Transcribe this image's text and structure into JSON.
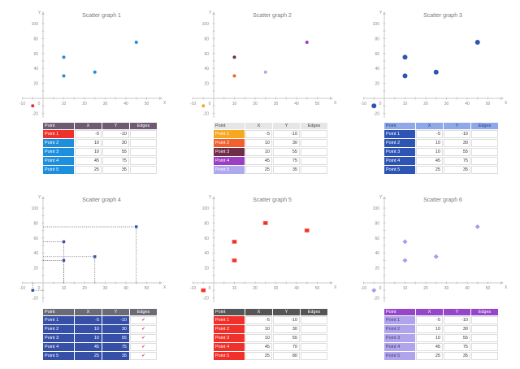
{
  "chart_data": [
    {
      "type": "scatter",
      "title": "Scatter graph 1",
      "xlabel": "X",
      "ylabel": "Y",
      "xlim": [
        -10,
        50
      ],
      "ylim": [
        -20,
        100
      ],
      "xticks": [
        "-10",
        "0",
        "10",
        "20",
        "30",
        "40",
        "50"
      ],
      "yticks": [
        "-20",
        "20",
        "40",
        "60",
        "80",
        "100"
      ],
      "marker": "circle",
      "edges": false,
      "table_header": {
        "point": "Point",
        "x": "X",
        "y": "Y",
        "edges": "Edges",
        "color": "#6e5a72"
      },
      "points": [
        {
          "label": "Point 1",
          "x": -5,
          "y": -10,
          "color": "#f0302a"
        },
        {
          "label": "Point 2",
          "x": 10,
          "y": 30,
          "color": "#1e8fdc"
        },
        {
          "label": "Point 3",
          "x": 10,
          "y": 55,
          "color": "#1e8fdc"
        },
        {
          "label": "Point 4",
          "x": 45,
          "y": 75,
          "color": "#1e8fdc"
        },
        {
          "label": "Point 5",
          "x": 25,
          "y": 35,
          "color": "#1e8fdc"
        }
      ]
    },
    {
      "type": "scatter",
      "title": "Scatter graph 2",
      "xlabel": "X",
      "ylabel": "Y",
      "xlim": [
        -10,
        50
      ],
      "ylim": [
        -20,
        100
      ],
      "xticks": [
        "-10",
        "0",
        "10",
        "20",
        "30",
        "40",
        "50"
      ],
      "yticks": [
        "-20",
        "20",
        "40",
        "60",
        "80",
        "100"
      ],
      "marker": "circle",
      "edges": false,
      "table_header": {
        "point": "Point",
        "x": "X",
        "y": "Y",
        "edges": "Edges",
        "color": "#e6e6e6",
        "text_color": "#444"
      },
      "points": [
        {
          "label": "Point 1",
          "x": -5,
          "y": -10,
          "color": "#f7a823"
        },
        {
          "label": "Point 2",
          "x": 10,
          "y": 30,
          "color": "#f2602e"
        },
        {
          "label": "Point 3",
          "x": 10,
          "y": 55,
          "color": "#6e2e4a"
        },
        {
          "label": "Point 4",
          "x": 45,
          "y": 75,
          "color": "#9b3fc2"
        },
        {
          "label": "Point 5",
          "x": 25,
          "y": 35,
          "color": "#b0a8ee"
        }
      ]
    },
    {
      "type": "scatter",
      "title": "Scatter graph 3",
      "xlabel": "X",
      "ylabel": "Y",
      "xlim": [
        -10,
        50
      ],
      "ylim": [
        -20,
        100
      ],
      "xticks": [
        "-10",
        "0",
        "10",
        "20",
        "30",
        "40",
        "50"
      ],
      "yticks": [
        "-20",
        "20",
        "40",
        "60",
        "80",
        "100"
      ],
      "marker": "circle-large",
      "edges": false,
      "table_header": {
        "point": "Point",
        "x": "X",
        "y": "Y",
        "edges": "Edges",
        "color": "#8fa8e8",
        "text_color": "#2a3f8a"
      },
      "points": [
        {
          "label": "Point 1",
          "x": -5,
          "y": -10,
          "color": "#2f55b4"
        },
        {
          "label": "Point 2",
          "x": 10,
          "y": 30,
          "color": "#2f55b4"
        },
        {
          "label": "Point 3",
          "x": 10,
          "y": 55,
          "color": "#2f55b4"
        },
        {
          "label": "Point 4",
          "x": 45,
          "y": 75,
          "color": "#2f55b4"
        },
        {
          "label": "Point 5",
          "x": 25,
          "y": 35,
          "color": "#2f55b4"
        }
      ]
    },
    {
      "type": "scatter",
      "title": "Scatter graph 4",
      "xlabel": "X",
      "ylabel": "Y",
      "xlim": [
        -10,
        50
      ],
      "ylim": [
        -20,
        100
      ],
      "xticks": [
        "-10",
        "0",
        "10",
        "20",
        "30",
        "40",
        "50"
      ],
      "yticks": [
        "-20",
        "20",
        "40",
        "60",
        "80",
        "100"
      ],
      "marker": "square-small",
      "edges": true,
      "edge_mark": "✔",
      "table_header": {
        "point": "Point",
        "x": "X",
        "y": "Y",
        "edges": "Edges",
        "color": "#6b6b78"
      },
      "points": [
        {
          "label": "Point 1",
          "x": -5,
          "y": -10,
          "color": "#3650a8"
        },
        {
          "label": "Point 2",
          "x": 10,
          "y": 30,
          "color": "#3650a8"
        },
        {
          "label": "Point 3",
          "x": 10,
          "y": 55,
          "color": "#3650a8"
        },
        {
          "label": "Point 4",
          "x": 45,
          "y": 75,
          "color": "#3650a8"
        },
        {
          "label": "Point 5",
          "x": 25,
          "y": 35,
          "color": "#3650a8"
        }
      ]
    },
    {
      "type": "scatter",
      "title": "Scatter graph 5",
      "xlabel": "X",
      "ylabel": "Y",
      "xlim": [
        -10,
        50
      ],
      "ylim": [
        -20,
        100
      ],
      "xticks": [
        "-10",
        "0",
        "10",
        "20",
        "30",
        "40",
        "50"
      ],
      "yticks": [
        "-20",
        "20",
        "40",
        "60",
        "80",
        "100"
      ],
      "marker": "square",
      "edges": false,
      "table_header": {
        "point": "Point",
        "x": "X",
        "y": "Y",
        "edges": "Edges",
        "color": "#555555"
      },
      "points": [
        {
          "label": "Point 1",
          "x": -5,
          "y": -10,
          "color": "#f0302a"
        },
        {
          "label": "Point 2",
          "x": 10,
          "y": 30,
          "color": "#f0302a"
        },
        {
          "label": "Point 3",
          "x": 10,
          "y": 55,
          "color": "#f0302a"
        },
        {
          "label": "Point 4",
          "x": 45,
          "y": 70,
          "color": "#f0302a"
        },
        {
          "label": "Point 5",
          "x": 25,
          "y": 80,
          "color": "#f0302a"
        }
      ]
    },
    {
      "type": "scatter",
      "title": "Scatter graph 6",
      "xlabel": "X",
      "ylabel": "Y",
      "xlim": [
        -10,
        50
      ],
      "ylim": [
        -20,
        100
      ],
      "xticks": [
        "-10",
        "0",
        "10",
        "20",
        "30",
        "40",
        "50"
      ],
      "yticks": [
        "-20",
        "20",
        "40",
        "60",
        "80",
        "100"
      ],
      "marker": "diamond",
      "edges": false,
      "table_header": {
        "point": "Point",
        "x": "X",
        "y": "Y",
        "edges": "Edges",
        "color": "#9646c8"
      },
      "points": [
        {
          "label": "Point 1",
          "x": -5,
          "y": -10,
          "color": "#a99af0",
          "label_bg": "#b0a4ea",
          "label_color": "#4a3a7a"
        },
        {
          "label": "Point 2",
          "x": 10,
          "y": 30,
          "color": "#a99af0",
          "label_bg": "#b0a4ea",
          "label_color": "#4a3a7a"
        },
        {
          "label": "Point 3",
          "x": 10,
          "y": 55,
          "color": "#a99af0",
          "label_bg": "#b0a4ea",
          "label_color": "#4a3a7a"
        },
        {
          "label": "Point 4",
          "x": 45,
          "y": 75,
          "color": "#a99af0",
          "label_bg": "#b0a4ea",
          "label_color": "#4a3a7a"
        },
        {
          "label": "Point 5",
          "x": 25,
          "y": 35,
          "color": "#a99af0",
          "label_bg": "#b0a4ea",
          "label_color": "#4a3a7a"
        }
      ]
    }
  ]
}
